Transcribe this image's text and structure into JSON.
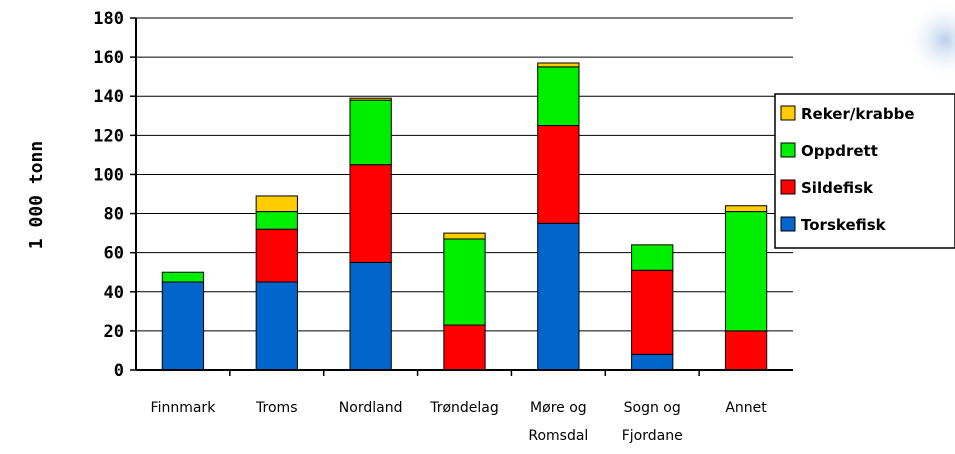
{
  "chart_data": {
    "type": "bar",
    "stacked": true,
    "ylabel": "1 000 tonn",
    "ylim": [
      0,
      180
    ],
    "yticks": [
      "0",
      "20",
      "40",
      "60",
      "80",
      "100",
      "120",
      "140",
      "160",
      "180"
    ],
    "grid": true,
    "legend_position": "right",
    "categories": [
      [
        "Finnmark"
      ],
      [
        "Troms"
      ],
      [
        "Nordland"
      ],
      [
        "Trøndelag"
      ],
      [
        "Møre og",
        "Romsdal"
      ],
      [
        "Sogn og",
        "Fjordane"
      ],
      [
        "Annet"
      ]
    ],
    "series": [
      {
        "name": "Torskefisk",
        "color": "#0066cc",
        "values": [
          45,
          45,
          55,
          0,
          75,
          8,
          0
        ]
      },
      {
        "name": "Sildefisk",
        "color": "#ff0000",
        "values": [
          0,
          27,
          50,
          23,
          50,
          43,
          20
        ]
      },
      {
        "name": "Oppdrett",
        "color": "#00ee00",
        "values": [
          5,
          9,
          33,
          44,
          30,
          13,
          61
        ]
      },
      {
        "name": "Reker/krabbe",
        "color": "#ffcc00",
        "values": [
          0,
          8,
          1,
          3,
          2,
          0,
          3
        ]
      }
    ],
    "legend_order": [
      "Reker/krabbe",
      "Oppdrett",
      "Sildefisk",
      "Torskefisk"
    ]
  }
}
